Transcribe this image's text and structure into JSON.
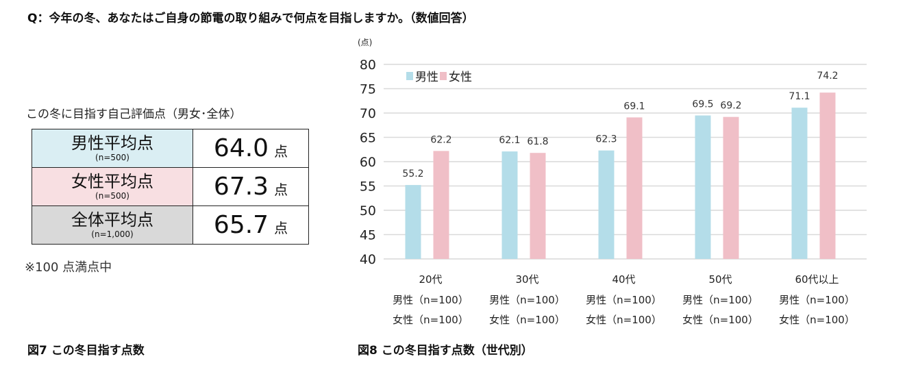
{
  "question": "Q：今年の冬、あなたはご自身の節電の取り組みで何点を目指しますか。（数値回答）",
  "table": {
    "title": "この冬に目指す自己評価点（男女･全体）",
    "rows": [
      {
        "label": "男性平均点",
        "n": "(n=500)",
        "value": "64.0",
        "unit": "点",
        "color": "#daeef3"
      },
      {
        "label": "女性平均点",
        "n": "(n=500)",
        "value": "67.3",
        "unit": "点",
        "color": "#f8dfe2"
      },
      {
        "label": "全体平均点",
        "n": "(n=1,000)",
        "value": "65.7",
        "unit": "点",
        "color": "#d9d9d9"
      }
    ],
    "note": "※100 点満点中"
  },
  "fig7_caption": "図7  この冬目指す点数",
  "fig8_caption": "図8  この冬目指す点数（世代別）",
  "chart_data": {
    "type": "bar",
    "ylabel": "(点)",
    "ylim": [
      40,
      80
    ],
    "yticks": [
      40,
      45,
      50,
      55,
      60,
      65,
      70,
      75,
      80
    ],
    "grid": true,
    "legend": "top-left",
    "categories": [
      "20代",
      "30代",
      "40代",
      "50代",
      "60代以上"
    ],
    "category_sublabels": [
      [
        "男性（n=100）",
        "女性（n=100）"
      ],
      [
        "男性（n=100）",
        "女性（n=100）"
      ],
      [
        "男性（n=100）",
        "女性（n=100）"
      ],
      [
        "男性（n=100）",
        "女性（n=100）"
      ],
      [
        "男性（n=100）",
        "女性（n=100）"
      ]
    ],
    "series": [
      {
        "name": "男性",
        "values": [
          55.2,
          62.1,
          62.3,
          69.5,
          71.1
        ],
        "color": "#b4dde9"
      },
      {
        "name": "女性",
        "values": [
          62.2,
          61.8,
          69.1,
          69.2,
          74.2
        ],
        "color": "#f0bfc7"
      }
    ]
  }
}
